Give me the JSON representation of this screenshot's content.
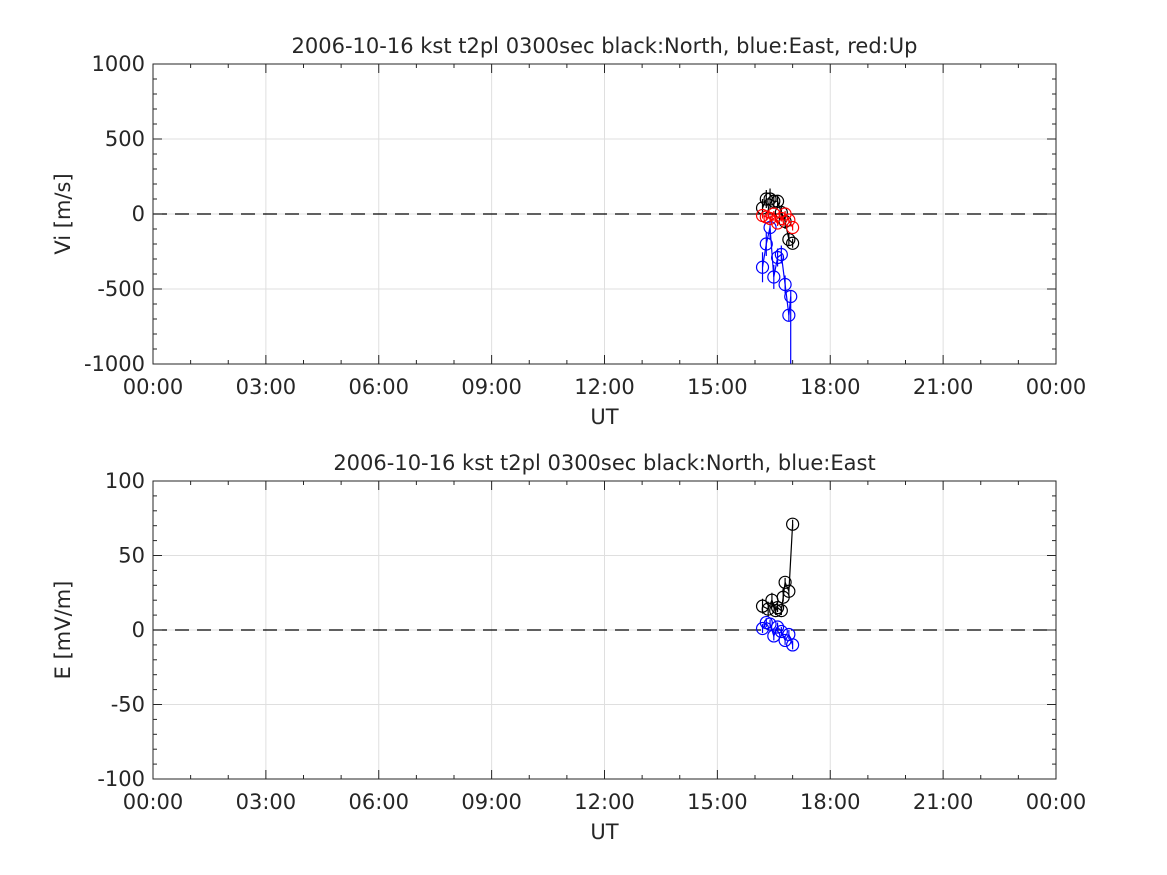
{
  "chart_data": [
    {
      "type": "scatter",
      "title": "2006-10-16 kst t2pl 0300sec black:North, blue:East, red:Up",
      "xlabel": "UT",
      "ylabel": "Vi [m/s]",
      "xlim": [
        0,
        24
      ],
      "ylim": [
        -1000,
        1000
      ],
      "xticklabels": [
        "00:00",
        "03:00",
        "06:00",
        "09:00",
        "12:00",
        "15:00",
        "18:00",
        "21:00",
        "00:00"
      ],
      "yticks": [
        -1000,
        -500,
        0,
        500,
        1000
      ],
      "grid": true,
      "zero_line": "dashed",
      "series": [
        {
          "name": "North",
          "color": "#000000",
          "x": [
            16.2,
            16.3,
            16.4,
            16.5,
            16.6,
            16.7,
            16.8,
            16.9,
            17.0
          ],
          "y": [
            40,
            100,
            100,
            85,
            85,
            10,
            -50,
            -170,
            -195
          ],
          "err": [
            60,
            60,
            70,
            50,
            40,
            50,
            50,
            40,
            30
          ]
        },
        {
          "name": "East",
          "color": "#0000ff",
          "x": [
            16.2,
            16.3,
            16.4,
            16.5,
            16.6,
            16.7,
            16.8,
            16.9,
            16.95
          ],
          "y": [
            -355,
            -200,
            -90,
            -420,
            -290,
            -270,
            -470,
            -675,
            -550
          ],
          "err": [
            100,
            80,
            80,
            80,
            60,
            60,
            60,
            40,
            40
          ],
          "tail_y": -1000
        },
        {
          "name": "Up",
          "color": "#ff0000",
          "x": [
            16.2,
            16.3,
            16.4,
            16.5,
            16.6,
            16.7,
            16.8,
            16.9,
            17.0
          ],
          "y": [
            -10,
            -20,
            -30,
            0,
            -60,
            -30,
            0,
            -40,
            -90
          ],
          "err": [
            20,
            20,
            20,
            20,
            20,
            20,
            20,
            20,
            20
          ]
        }
      ]
    },
    {
      "type": "scatter",
      "title": "2006-10-16 kst t2pl 0300sec black:North, blue:East",
      "xlabel": "UT",
      "ylabel": "E [mV/m]",
      "xlim": [
        0,
        24
      ],
      "ylim": [
        -100,
        100
      ],
      "xticklabels": [
        "00:00",
        "03:00",
        "06:00",
        "09:00",
        "12:00",
        "15:00",
        "18:00",
        "21:00",
        "00:00"
      ],
      "yticks": [
        -100,
        -50,
        0,
        50,
        100
      ],
      "grid": true,
      "zero_line": "dashed",
      "series": [
        {
          "name": "North",
          "color": "#000000",
          "x": [
            16.2,
            16.35,
            16.45,
            16.55,
            16.6,
            16.7,
            16.75,
            16.8,
            16.9,
            17.0
          ],
          "y": [
            16,
            14,
            20,
            13,
            15,
            13,
            22,
            32,
            26,
            71
          ],
          "err": [
            5,
            5,
            5,
            3,
            3,
            3,
            3,
            3,
            3,
            3
          ]
        },
        {
          "name": "East",
          "color": "#0000ff",
          "x": [
            16.2,
            16.3,
            16.4,
            16.5,
            16.6,
            16.7,
            16.8,
            16.9,
            17.0
          ],
          "y": [
            1,
            5,
            4,
            -4,
            2,
            -1,
            -7,
            -3,
            -10
          ],
          "err": [
            3,
            3,
            3,
            3,
            3,
            3,
            3,
            3,
            3
          ]
        }
      ]
    }
  ]
}
